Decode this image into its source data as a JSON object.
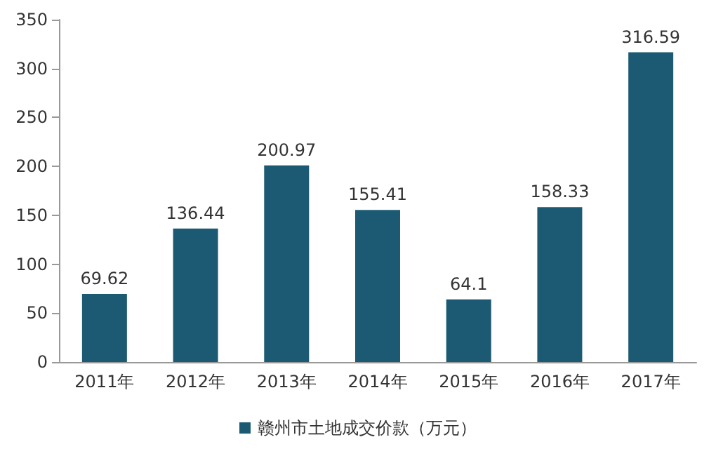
{
  "chart_data": {
    "type": "bar",
    "categories": [
      "2011年",
      "2012年",
      "2013年",
      "2014年",
      "2015年",
      "2016年",
      "2017年"
    ],
    "series": [
      {
        "name": "赣州市土地成交价款（万元）",
        "color": "#1b5a72",
        "values": [
          69.62,
          136.44,
          200.97,
          155.41,
          64.1,
          158.33,
          316.59
        ]
      }
    ],
    "ylim": [
      0,
      350
    ],
    "yticks": [
      0,
      50,
      100,
      150,
      200,
      250,
      300,
      350
    ],
    "grid": false,
    "legend": "bottom",
    "data_labels": true
  }
}
